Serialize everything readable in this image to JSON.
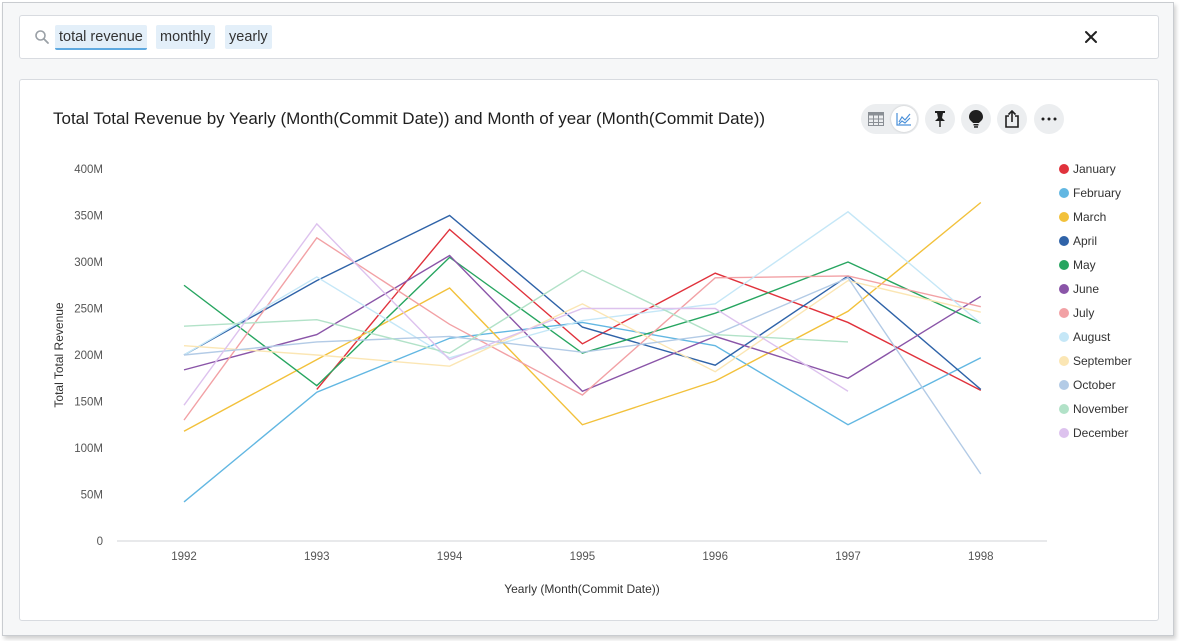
{
  "search": {
    "tokens": [
      "total revenue",
      "monthly",
      "yearly"
    ]
  },
  "chart_toolbar": {
    "icons": [
      "table-icon",
      "line-chart-icon",
      "pin-icon",
      "lightbulb-icon",
      "share-icon",
      "more-icon"
    ]
  },
  "colors": {
    "January": "#e0323c",
    "February": "#62b7e2",
    "March": "#f2c13b",
    "April": "#2f63a8",
    "May": "#27a560",
    "June": "#8a55a8",
    "July": "#f2a1a5",
    "August": "#c5e7f7",
    "September": "#fbe6b4",
    "October": "#b3cbe6",
    "November": "#b2e2c8",
    "December": "#ddc2ee"
  },
  "chart_data": {
    "type": "line",
    "title": "Total Total Revenue by Yearly (Month(Commit Date)) and Month of year (Month(Commit Date))",
    "xlabel": "Yearly (Month(Commit Date))",
    "ylabel": "Total Total Revenue",
    "x": [
      "1992",
      "1993",
      "1994",
      "1995",
      "1996",
      "1997",
      "1998"
    ],
    "ylim": [
      0,
      400
    ],
    "yticks": [
      "0",
      "50M",
      "100M",
      "150M",
      "200M",
      "250M",
      "300M",
      "350M",
      "400M"
    ],
    "unit": "M",
    "grid": false,
    "legend_position": "right",
    "series": [
      {
        "name": "January",
        "values": [
          null,
          163,
          335,
          212,
          288,
          235,
          162
        ]
      },
      {
        "name": "February",
        "values": [
          42,
          160,
          218,
          235,
          210,
          125,
          197
        ]
      },
      {
        "name": "March",
        "values": [
          118,
          195,
          272,
          125,
          172,
          247,
          364
        ]
      },
      {
        "name": "April",
        "values": [
          200,
          280,
          350,
          230,
          189,
          285,
          163
        ]
      },
      {
        "name": "May",
        "values": [
          275,
          167,
          305,
          202,
          245,
          300,
          234
        ]
      },
      {
        "name": "June",
        "values": [
          184,
          222,
          307,
          161,
          220,
          175,
          263
        ]
      },
      {
        "name": "July",
        "values": [
          130,
          326,
          233,
          157,
          283,
          285,
          252
        ]
      },
      {
        "name": "August",
        "values": [
          200,
          284,
          197,
          237,
          255,
          354,
          234
        ]
      },
      {
        "name": "September",
        "values": [
          210,
          200,
          188,
          255,
          182,
          280,
          246
        ]
      },
      {
        "name": "October",
        "values": [
          200,
          214,
          220,
          203,
          222,
          283,
          72
        ]
      },
      {
        "name": "November",
        "values": [
          231,
          238,
          202,
          291,
          222,
          214,
          null
        ]
      },
      {
        "name": "December",
        "values": [
          146,
          341,
          195,
          250,
          250,
          161,
          null
        ]
      }
    ]
  }
}
